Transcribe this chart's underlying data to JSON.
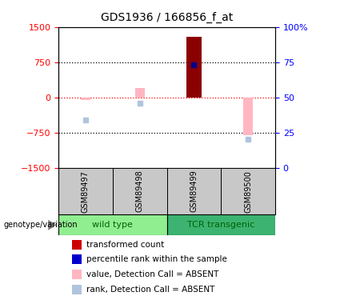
{
  "title": "GDS1936 / 166856_f_at",
  "samples": [
    "GSM89497",
    "GSM89498",
    "GSM89499",
    "GSM89500"
  ],
  "bar_values": [
    null,
    null,
    1300,
    null
  ],
  "absent_value_bars": [
    -60,
    200,
    null,
    -800
  ],
  "absent_rank_dots": [
    -480,
    -120,
    null,
    -880
  ],
  "percentile_rank_dots": [
    null,
    null,
    700,
    null
  ],
  "ylim": [
    -1500,
    1500
  ],
  "y2lim": [
    0,
    100
  ],
  "yticks": [
    -1500,
    -750,
    0,
    750,
    1500
  ],
  "y2ticks": [
    0,
    25,
    50,
    75,
    100
  ],
  "hlines_black": [
    750,
    -750
  ],
  "hline_red": 0,
  "legend_labels": [
    "transformed count",
    "percentile rank within the sample",
    "value, Detection Call = ABSENT",
    "rank, Detection Call = ABSENT"
  ],
  "legend_colors": [
    "#cc0000",
    "#0000cc",
    "#ffb6c1",
    "#b0c4de"
  ],
  "x_positions": [
    1,
    2,
    3,
    4
  ],
  "group1_label": "wild type",
  "group2_label": "TCR transgenic",
  "group1_color": "#90EE90",
  "group2_color": "#3CB371",
  "group_text_color": "#006400",
  "sample_bg_color": "#C8C8C8",
  "absent_bar_color": "#FFB6C1",
  "absent_rank_color": "#B0C4DE",
  "transformed_color": "#8B0000",
  "percentile_color": "#00008B"
}
